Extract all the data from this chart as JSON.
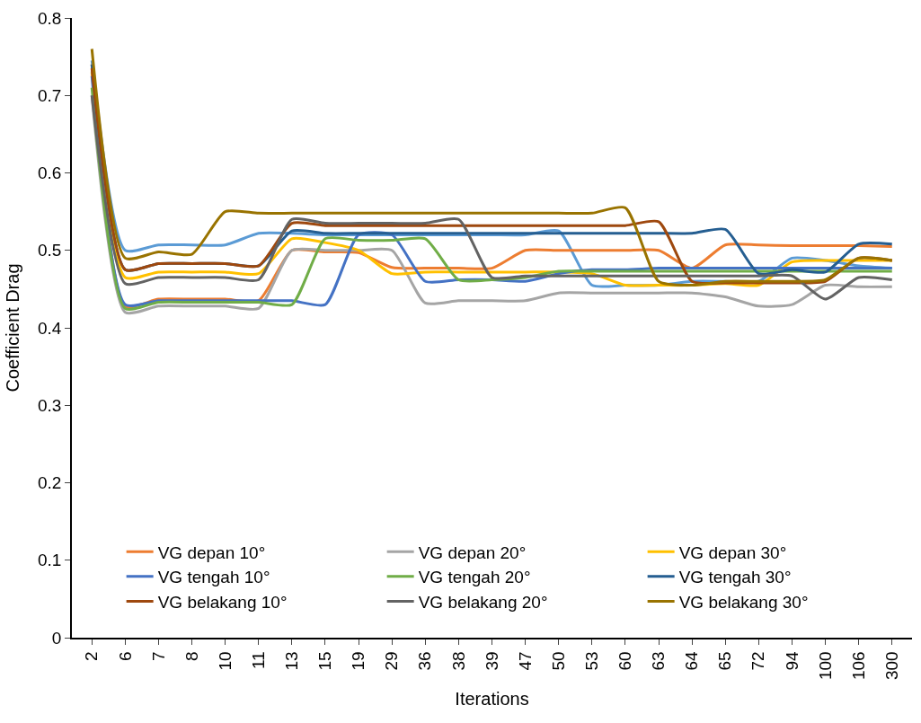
{
  "chart_data": {
    "type": "line",
    "xlabel": "Iterations",
    "ylabel": "Coefficient Drag",
    "categories": [
      "2",
      "6",
      "7",
      "8",
      "10",
      "11",
      "13",
      "15",
      "19",
      "29",
      "36",
      "38",
      "39",
      "47",
      "50",
      "53",
      "60",
      "63",
      "64",
      "65",
      "72",
      "94",
      "100",
      "106",
      "300"
    ],
    "ylim": [
      0,
      0.8
    ],
    "yticks": [
      0,
      0.1,
      0.2,
      0.3,
      0.4,
      0.5,
      0.6,
      0.7,
      0.8
    ],
    "grid": false,
    "legend": "bottom right",
    "marker": "none",
    "line_style": "solid",
    "series": [
      {
        "color": "#5b9bd5",
        "values": [
          0.745,
          0.5,
          0.507,
          0.507,
          0.507,
          0.522,
          0.522,
          0.52,
          0.52,
          0.52,
          0.52,
          0.52,
          0.52,
          0.52,
          0.525,
          0.455,
          0.455,
          0.455,
          0.46,
          0.46,
          0.46,
          0.49,
          0.487,
          0.48,
          0.477
        ]
      },
      {
        "name": "VG depan 10°",
        "color": "#ed7d31",
        "values": [
          0.74,
          0.428,
          0.437,
          0.437,
          0.437,
          0.435,
          0.5,
          0.498,
          0.497,
          0.478,
          0.477,
          0.477,
          0.477,
          0.5,
          0.5,
          0.5,
          0.5,
          0.5,
          0.477,
          0.507,
          0.507,
          0.506,
          0.506,
          0.506,
          0.505
        ]
      },
      {
        "name": "VG depan 20°",
        "color": "#a5a5a5",
        "values": [
          0.7,
          0.42,
          0.428,
          0.428,
          0.428,
          0.425,
          0.5,
          0.5,
          0.5,
          0.5,
          0.432,
          0.435,
          0.435,
          0.435,
          0.445,
          0.445,
          0.445,
          0.445,
          0.445,
          0.44,
          0.428,
          0.43,
          0.455,
          0.453,
          0.453
        ]
      },
      {
        "name": "VG depan 30°",
        "color": "#ffc000",
        "values": [
          0.73,
          0.465,
          0.472,
          0.472,
          0.472,
          0.47,
          0.515,
          0.51,
          0.5,
          0.47,
          0.472,
          0.472,
          0.472,
          0.472,
          0.472,
          0.47,
          0.455,
          0.455,
          0.455,
          0.457,
          0.455,
          0.485,
          0.487,
          0.487,
          0.487
        ]
      },
      {
        "name": "VG tengah 10°",
        "color": "#4472c4",
        "values": [
          0.725,
          0.43,
          0.435,
          0.435,
          0.435,
          0.435,
          0.435,
          0.43,
          0.52,
          0.52,
          0.46,
          0.462,
          0.462,
          0.46,
          0.47,
          0.475,
          0.475,
          0.477,
          0.477,
          0.477,
          0.477,
          0.477,
          0.477,
          0.477,
          0.477
        ]
      },
      {
        "name": "VG tengah 20°",
        "color": "#70ad47",
        "values": [
          0.71,
          0.425,
          0.433,
          0.433,
          0.433,
          0.433,
          0.43,
          0.515,
          0.513,
          0.513,
          0.515,
          0.462,
          0.462,
          0.465,
          0.473,
          0.473,
          0.473,
          0.473,
          0.473,
          0.473,
          0.473,
          0.473,
          0.473,
          0.473,
          0.473
        ]
      },
      {
        "name": "VG tengah 30°",
        "color": "#255e91",
        "values": [
          0.74,
          0.475,
          0.483,
          0.483,
          0.483,
          0.48,
          0.525,
          0.522,
          0.522,
          0.522,
          0.522,
          0.522,
          0.522,
          0.522,
          0.522,
          0.522,
          0.522,
          0.522,
          0.522,
          0.527,
          0.47,
          0.475,
          0.472,
          0.508,
          0.508
        ]
      },
      {
        "name": "VG belakang 10°",
        "color": "#9e480e",
        "values": [
          0.735,
          0.475,
          0.483,
          0.483,
          0.483,
          0.48,
          0.535,
          0.532,
          0.532,
          0.532,
          0.532,
          0.532,
          0.532,
          0.532,
          0.532,
          0.532,
          0.532,
          0.537,
          0.46,
          0.458,
          0.458,
          0.458,
          0.46,
          0.49,
          0.487
        ]
      },
      {
        "name": "VG belakang 20°",
        "color": "#636363",
        "values": [
          0.7,
          0.457,
          0.465,
          0.465,
          0.465,
          0.462,
          0.54,
          0.535,
          0.535,
          0.535,
          0.535,
          0.54,
          0.465,
          0.467,
          0.467,
          0.467,
          0.467,
          0.467,
          0.467,
          0.467,
          0.467,
          0.467,
          0.437,
          0.465,
          0.462
        ]
      },
      {
        "name": "VG belakang 30°",
        "color": "#997300",
        "values": [
          0.76,
          0.49,
          0.498,
          0.495,
          0.55,
          0.548,
          0.548,
          0.548,
          0.548,
          0.548,
          0.548,
          0.548,
          0.548,
          0.548,
          0.548,
          0.548,
          0.555,
          0.46,
          0.455,
          0.46,
          0.46,
          0.46,
          0.462,
          0.49,
          0.487
        ]
      }
    ]
  }
}
